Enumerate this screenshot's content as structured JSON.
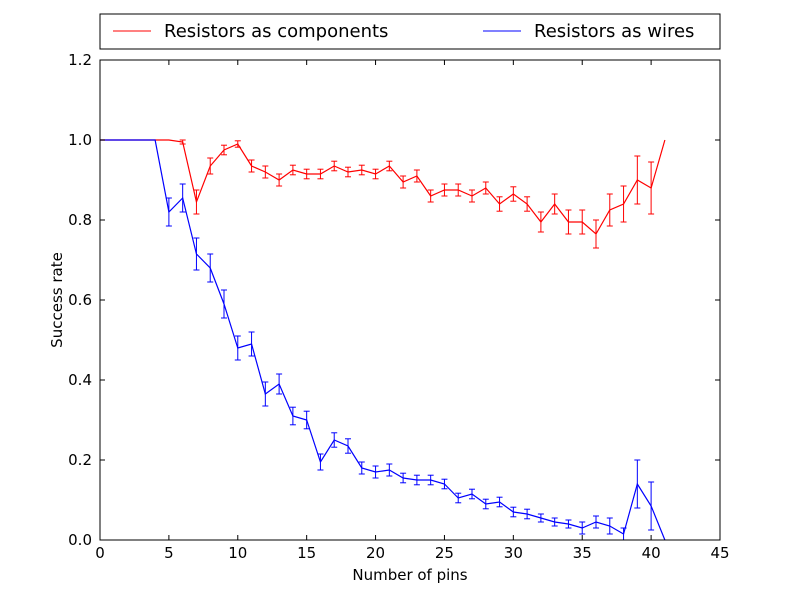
{
  "chart_data": {
    "type": "line",
    "xlabel": "Number of pins",
    "ylabel": "Success rate",
    "xlim": [
      0,
      45
    ],
    "ylim": [
      0.0,
      1.2
    ],
    "xticks": [
      "0",
      "5",
      "10",
      "15",
      "20",
      "25",
      "30",
      "35",
      "40",
      "45"
    ],
    "yticks": [
      "0.0",
      "0.2",
      "0.4",
      "0.6",
      "0.8",
      "1.0",
      "1.2"
    ],
    "grid": false,
    "legend_position": "top",
    "series": [
      {
        "name": "Resistors as components",
        "color": "#ff0000",
        "x": [
          0,
          1,
          2,
          3,
          4,
          5,
          6,
          7,
          8,
          9,
          10,
          11,
          12,
          13,
          14,
          15,
          16,
          17,
          18,
          19,
          20,
          21,
          22,
          23,
          24,
          25,
          26,
          27,
          28,
          29,
          30,
          31,
          32,
          33,
          34,
          35,
          36,
          37,
          38,
          39,
          40,
          41
        ],
        "y": [
          1.0,
          1.0,
          1.0,
          1.0,
          1.0,
          1.0,
          0.995,
          0.845,
          0.935,
          0.975,
          0.99,
          0.935,
          0.92,
          0.9,
          0.925,
          0.915,
          0.915,
          0.935,
          0.92,
          0.925,
          0.915,
          0.935,
          0.895,
          0.91,
          0.86,
          0.875,
          0.875,
          0.86,
          0.88,
          0.84,
          0.865,
          0.84,
          0.795,
          0.84,
          0.795,
          0.795,
          0.765,
          0.825,
          0.84,
          0.9,
          0.88,
          1.0
        ],
        "err": [
          0,
          0,
          0,
          0,
          0,
          0,
          0.005,
          0.03,
          0.02,
          0.012,
          0.008,
          0.015,
          0.015,
          0.015,
          0.012,
          0.012,
          0.012,
          0.012,
          0.012,
          0.012,
          0.012,
          0.012,
          0.015,
          0.015,
          0.015,
          0.015,
          0.015,
          0.015,
          0.015,
          0.018,
          0.018,
          0.018,
          0.025,
          0.025,
          0.03,
          0.03,
          0.035,
          0.04,
          0.045,
          0.06,
          0.065,
          0
        ]
      },
      {
        "name": "Resistors as wires",
        "color": "#0000ff",
        "x": [
          0,
          1,
          2,
          3,
          4,
          5,
          6,
          7,
          8,
          9,
          10,
          11,
          12,
          13,
          14,
          15,
          16,
          17,
          18,
          19,
          20,
          21,
          22,
          23,
          24,
          25,
          26,
          27,
          28,
          29,
          30,
          31,
          32,
          33,
          34,
          35,
          36,
          37,
          38,
          39,
          40,
          41
        ],
        "y": [
          1.0,
          1.0,
          1.0,
          1.0,
          1.0,
          0.82,
          0.855,
          0.715,
          0.68,
          0.59,
          0.48,
          0.49,
          0.365,
          0.39,
          0.31,
          0.3,
          0.195,
          0.25,
          0.235,
          0.18,
          0.17,
          0.175,
          0.155,
          0.15,
          0.15,
          0.14,
          0.105,
          0.115,
          0.09,
          0.095,
          0.07,
          0.065,
          0.055,
          0.045,
          0.04,
          0.03,
          0.045,
          0.035,
          0.015,
          0.14,
          0.085,
          0.0
        ],
        "err": [
          0,
          0,
          0,
          0,
          0,
          0.035,
          0.035,
          0.04,
          0.035,
          0.035,
          0.03,
          0.03,
          0.03,
          0.025,
          0.022,
          0.022,
          0.02,
          0.018,
          0.018,
          0.015,
          0.015,
          0.015,
          0.012,
          0.012,
          0.012,
          0.012,
          0.012,
          0.012,
          0.012,
          0.012,
          0.012,
          0.012,
          0.01,
          0.01,
          0.01,
          0.015,
          0.015,
          0.02,
          0.015,
          0.06,
          0.06,
          0
        ]
      }
    ]
  }
}
